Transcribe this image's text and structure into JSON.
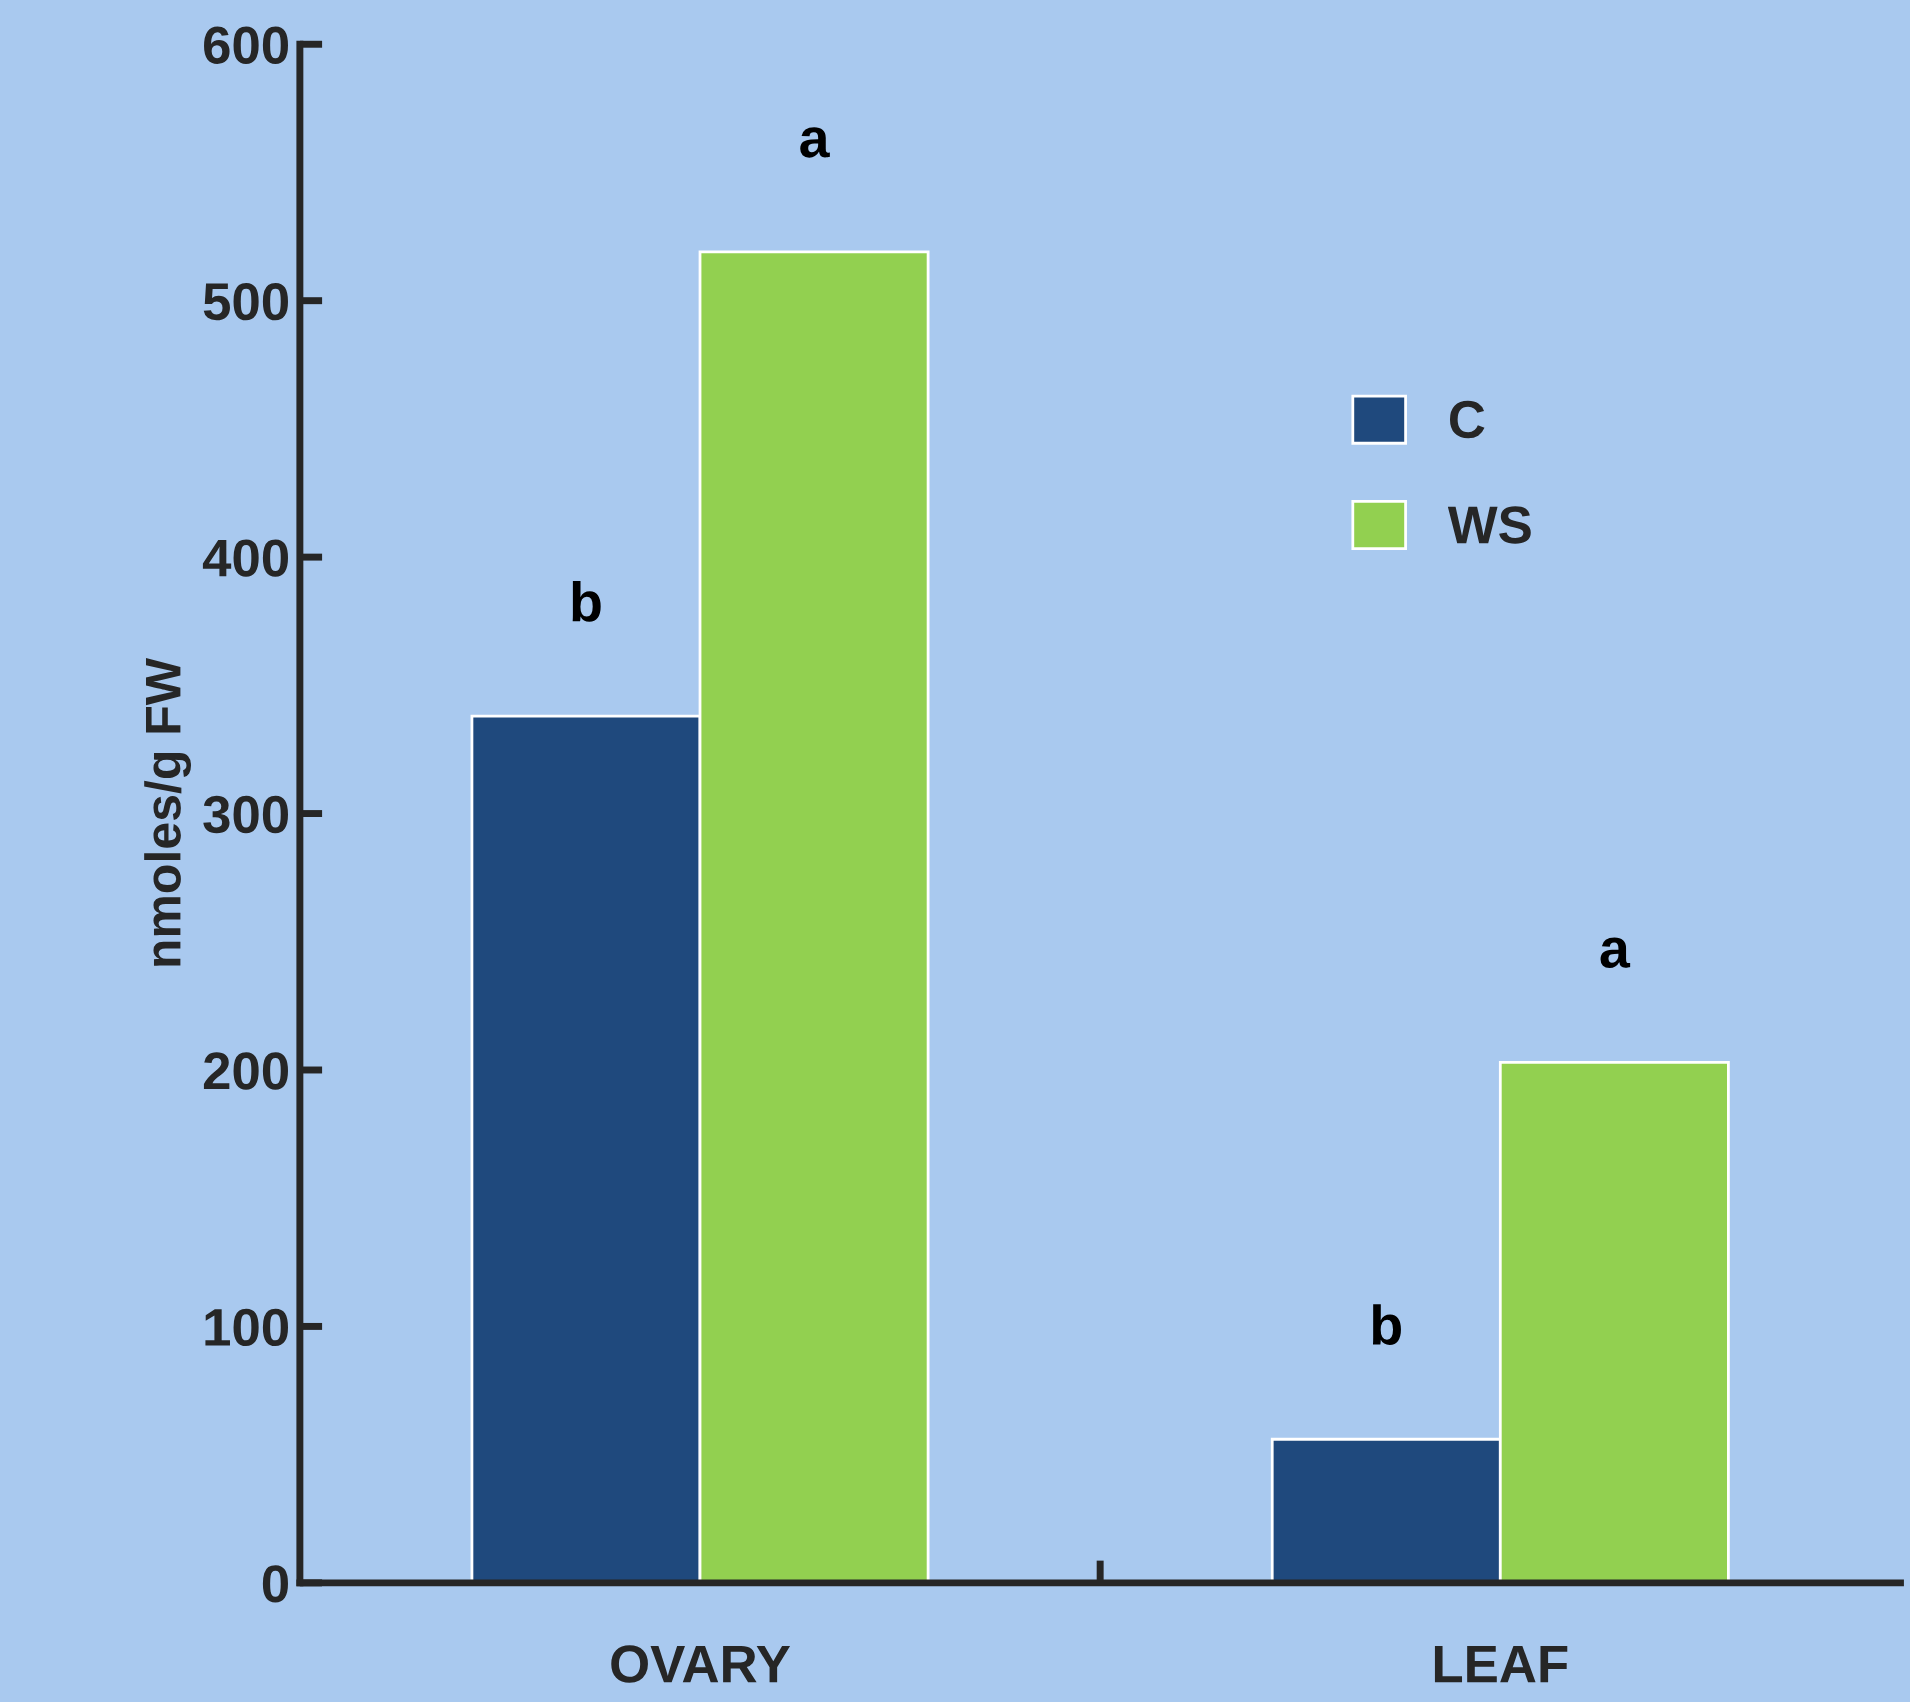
{
  "chart_data": {
    "type": "bar",
    "ylabel": "nmoles/g FW",
    "categories": [
      "OVARY",
      "LEAF"
    ],
    "series": [
      {
        "name": "C",
        "color": "#1f497d",
        "values": [
          338,
          56
        ],
        "value_labels": [
          "b",
          "b"
        ]
      },
      {
        "name": "WS",
        "color": "#92d050",
        "values": [
          519,
          203
        ],
        "value_labels": [
          "a",
          "a"
        ]
      }
    ],
    "ylim": [
      0,
      600
    ],
    "yticks": [
      0,
      100,
      200,
      300,
      400,
      500,
      600
    ],
    "grid": false,
    "legend": "right"
  }
}
